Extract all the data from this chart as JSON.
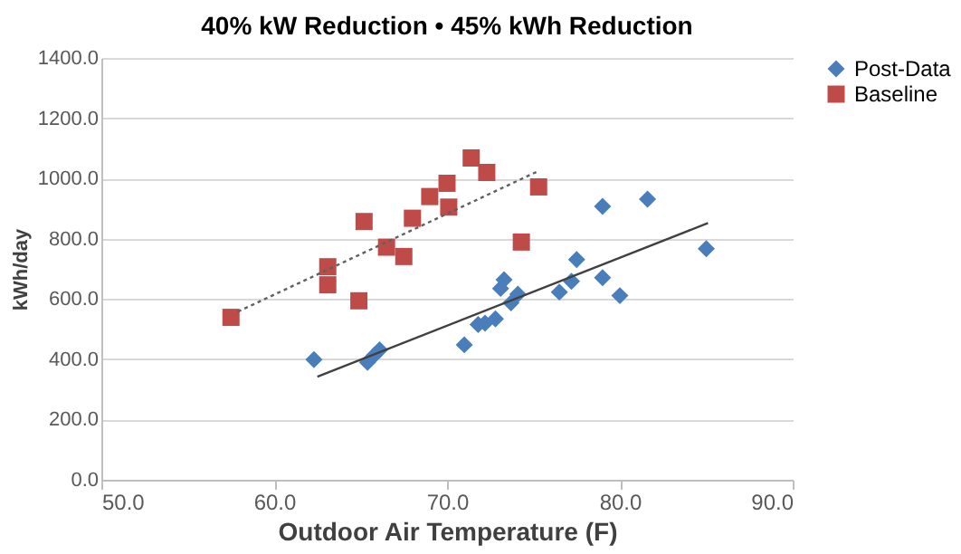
{
  "chart_data": {
    "type": "scatter",
    "title": "40% kW Reduction • 45% kWh Reduction",
    "xlabel": "Outdoor Air Temperature (F)",
    "ylabel": "kWh/day",
    "xlim": [
      50,
      90
    ],
    "xticks": [
      {
        "value": 50,
        "label": "50.0"
      },
      {
        "value": 60,
        "label": "60.0"
      },
      {
        "value": 70,
        "label": "70.0"
      },
      {
        "value": 80,
        "label": "80.0"
      },
      {
        "value": 90,
        "label": "90.0"
      }
    ],
    "ylim": [
      0,
      1400
    ],
    "yticks": [
      {
        "value": 0,
        "label": "0.0"
      },
      {
        "value": 200,
        "label": "200.0"
      },
      {
        "value": 400,
        "label": "400.0"
      },
      {
        "value": 600,
        "label": "600.0"
      },
      {
        "value": 800,
        "label": "800.0"
      },
      {
        "value": 1000,
        "label": "1000.0"
      },
      {
        "value": 1200,
        "label": "1200.0"
      },
      {
        "value": 1400,
        "label": "1400.0"
      }
    ],
    "grid": "y",
    "legend": "right",
    "series": [
      {
        "name": "Post-Data",
        "type": "scatter",
        "marker": "diamond",
        "color": "#4a7ebb",
        "x": [
          62.3,
          65.4,
          65.8,
          66.1,
          71.0,
          71.8,
          72.2,
          72.8,
          73.1,
          73.3,
          73.7,
          74.1,
          76.5,
          77.2,
          77.5,
          79.0,
          81.6,
          79.0,
          80.0,
          85.0
        ],
        "values": [
          399,
          390,
          414,
          431,
          448,
          515,
          520,
          534,
          635,
          664,
          587,
          616,
          623,
          659,
          731,
          907,
          931,
          671,
          611,
          767
        ]
      },
      {
        "name": "Baseline",
        "type": "scatter",
        "marker": "square",
        "color": "#be4b48",
        "x": [
          57.5,
          63.1,
          63.1,
          64.9,
          65.2,
          66.5,
          67.5,
          68.0,
          69.0,
          70.0,
          70.1,
          71.4,
          72.3,
          74.3,
          75.3
        ],
        "values": [
          539,
          707,
          647,
          594,
          857,
          772,
          741,
          868,
          940,
          984,
          905,
          1068,
          1020,
          789,
          972
        ]
      },
      {
        "type": "line",
        "color": "#404040",
        "line_style": "solid",
        "x": [
          62.5,
          85.1
        ],
        "values": [
          342,
          852
        ]
      },
      {
        "type": "line",
        "color": "#606060",
        "line_style": "dotted",
        "x": [
          57.9,
          75.3
        ],
        "values": [
          558,
          1025
        ]
      }
    ]
  }
}
